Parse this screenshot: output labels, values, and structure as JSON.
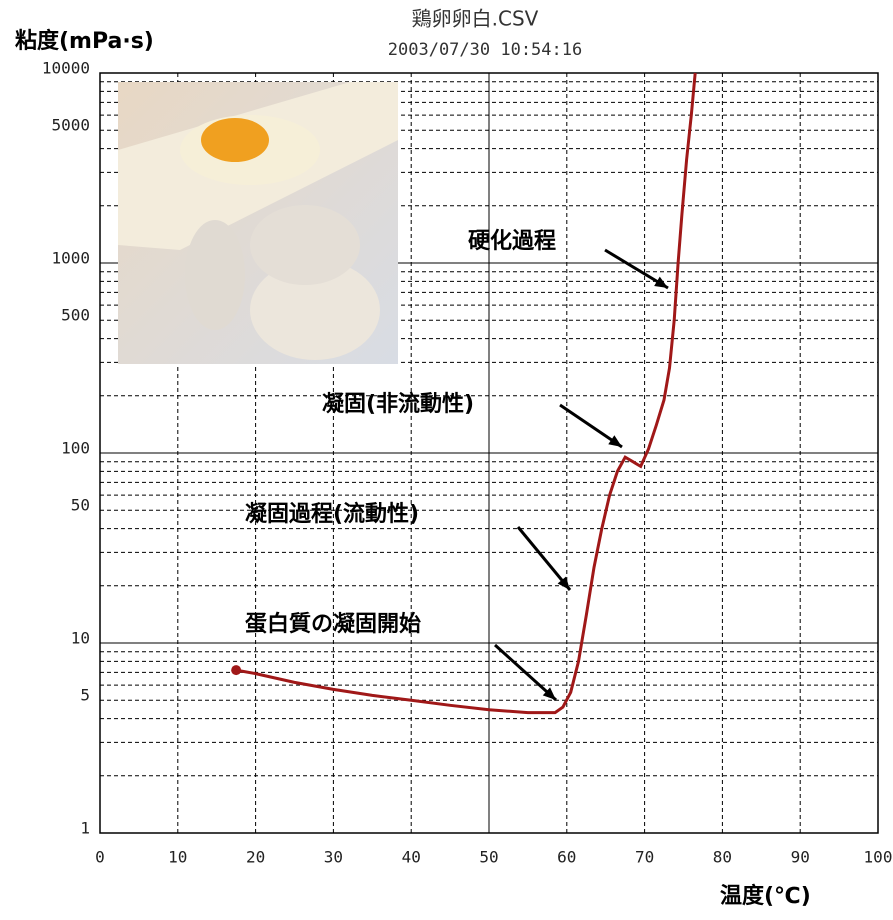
{
  "chart_data": {
    "type": "line",
    "title": "鶏卵卵白.CSV",
    "subtitle": "2003/07/30 10:54:16",
    "y_label": "粘度(mPa·s)",
    "x_label": "温度(℃)",
    "log_y": true,
    "color": "#a01818",
    "x": [
      17.5,
      20,
      25,
      30,
      35,
      40,
      45,
      50,
      55,
      58.5,
      59.5,
      60.5,
      61.5,
      62.5,
      63.5,
      64.5,
      65.5,
      66.5,
      67.5,
      68.5,
      69.5,
      70.5,
      71.5,
      72.5,
      73.2,
      73.8,
      74.3,
      74.8,
      75.4,
      76,
      76.5
    ],
    "values": [
      7.2,
      6.9,
      6.2,
      5.7,
      5.3,
      5.0,
      4.7,
      4.45,
      4.3,
      4.3,
      4.6,
      5.5,
      8,
      14,
      25,
      40,
      60,
      80,
      95,
      90,
      85,
      105,
      140,
      190,
      280,
      500,
      1000,
      1800,
      3500,
      6000,
      10000
    ],
    "xlim": [
      0,
      100
    ],
    "xticks": [
      0,
      10,
      20,
      30,
      40,
      50,
      60,
      70,
      80,
      90,
      100
    ],
    "ylim": [
      1,
      10000
    ],
    "yticks": [
      1,
      5,
      10,
      50,
      100,
      500,
      1000,
      5000,
      10000
    ],
    "y_minor_grid": [
      2,
      3,
      4,
      6,
      7,
      8,
      9,
      20,
      30,
      40,
      60,
      70,
      80,
      90,
      200,
      300,
      400,
      600,
      700,
      800,
      900,
      2000,
      3000,
      4000,
      6000,
      7000,
      8000,
      9000
    ],
    "annotations": [
      "硬化過程",
      "凝固(非流動性)",
      "凝固過程(流動性)",
      "蛋白質の凝固開始"
    ]
  }
}
